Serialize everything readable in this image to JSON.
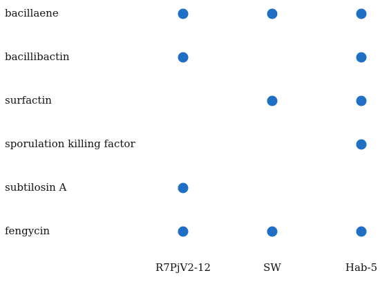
{
  "chart_data": {
    "type": "scatter",
    "title": "",
    "xlabel": "",
    "ylabel": "",
    "dot_color": "#1f6fc5",
    "columns": [
      "R7PjV2-12",
      "SW",
      "Hab-5"
    ],
    "rows": [
      "bacillaene",
      "bacillibactin",
      "surfactin",
      "sporulation killing factor",
      "subtilosin A",
      "fengycin"
    ],
    "points": [
      {
        "row": "bacillaene",
        "column": "R7PjV2-12"
      },
      {
        "row": "bacillaene",
        "column": "SW"
      },
      {
        "row": "bacillaene",
        "column": "Hab-5"
      },
      {
        "row": "bacillibactin",
        "column": "R7PjV2-12"
      },
      {
        "row": "bacillibactin",
        "column": "Hab-5"
      },
      {
        "row": "surfactin",
        "column": "SW"
      },
      {
        "row": "surfactin",
        "column": "Hab-5"
      },
      {
        "row": "sporulation killing factor",
        "column": "Hab-5"
      },
      {
        "row": "subtilosin A",
        "column": "R7PjV2-12"
      },
      {
        "row": "fengycin",
        "column": "R7PjV2-12"
      },
      {
        "row": "fengycin",
        "column": "SW"
      },
      {
        "row": "fengycin",
        "column": "Hab-5"
      }
    ],
    "grid": false,
    "legend": "none"
  }
}
